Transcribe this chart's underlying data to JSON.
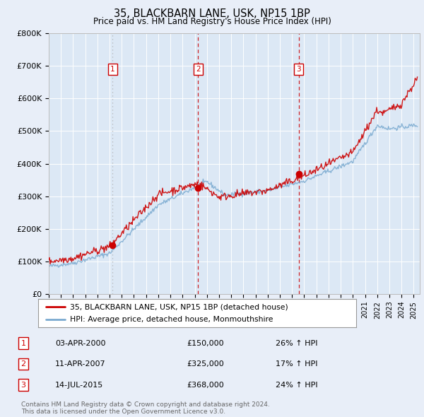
{
  "title": "35, BLACKBARN LANE, USK, NP15 1BP",
  "subtitle": "Price paid vs. HM Land Registry's House Price Index (HPI)",
  "ylim": [
    0,
    800000
  ],
  "yticks": [
    0,
    100000,
    200000,
    300000,
    400000,
    500000,
    600000,
    700000,
    800000
  ],
  "ytick_labels": [
    "£0",
    "£100K",
    "£200K",
    "£300K",
    "£400K",
    "£500K",
    "£600K",
    "£700K",
    "£800K"
  ],
  "xlim_start": 1995.0,
  "xlim_end": 2025.5,
  "background_color": "#e8eef8",
  "plot_bg_color": "#dce8f5",
  "grid_color": "#ffffff",
  "sales": [
    {
      "label": "1",
      "date": "03-APR-2000",
      "price": 150000,
      "year": 2000.25,
      "pct": "26%",
      "dir": "↑",
      "vline_style": "dotted",
      "vline_color": "#aaaaaa"
    },
    {
      "label": "2",
      "date": "11-APR-2007",
      "price": 325000,
      "year": 2007.28,
      "pct": "17%",
      "dir": "↑",
      "vline_style": "dashed",
      "vline_color": "#cc0000"
    },
    {
      "label": "3",
      "date": "14-JUL-2015",
      "price": 368000,
      "year": 2015.54,
      "pct": "24%",
      "dir": "↑",
      "vline_style": "dashed",
      "vline_color": "#cc0000"
    }
  ],
  "legend_property": "35, BLACKBARN LANE, USK, NP15 1BP (detached house)",
  "legend_hpi": "HPI: Average price, detached house, Monmouthshire",
  "footer1": "Contains HM Land Registry data © Crown copyright and database right 2024.",
  "footer2": "This data is licensed under the Open Government Licence v3.0.",
  "line_color_property": "#cc0000",
  "line_color_hpi": "#7aaad0",
  "sale_marker_color": "#cc0000"
}
